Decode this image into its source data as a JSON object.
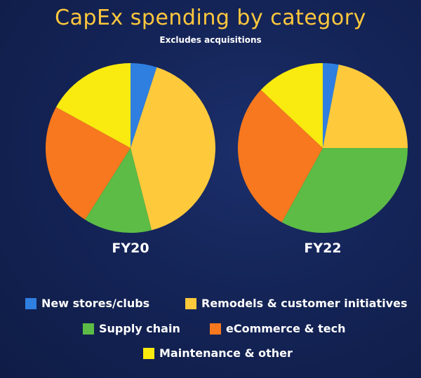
{
  "chart_data": {
    "type": "pie",
    "title": "CapEx spending by category",
    "subtitle": "Excludes acquisitions",
    "categories": [
      "New stores/clubs",
      "Remodels & customer initiatives",
      "Supply chain",
      "eCommerce & tech",
      "Maintenance & other"
    ],
    "colors": [
      "#2f7fe0",
      "#ffc93c",
      "#5cbc45",
      "#f7781e",
      "#f9ea0f"
    ],
    "series": [
      {
        "name": "FY20",
        "values": [
          5,
          41,
          13,
          24,
          17
        ]
      },
      {
        "name": "FY22",
        "values": [
          3,
          22,
          33,
          29,
          13
        ]
      }
    ]
  }
}
